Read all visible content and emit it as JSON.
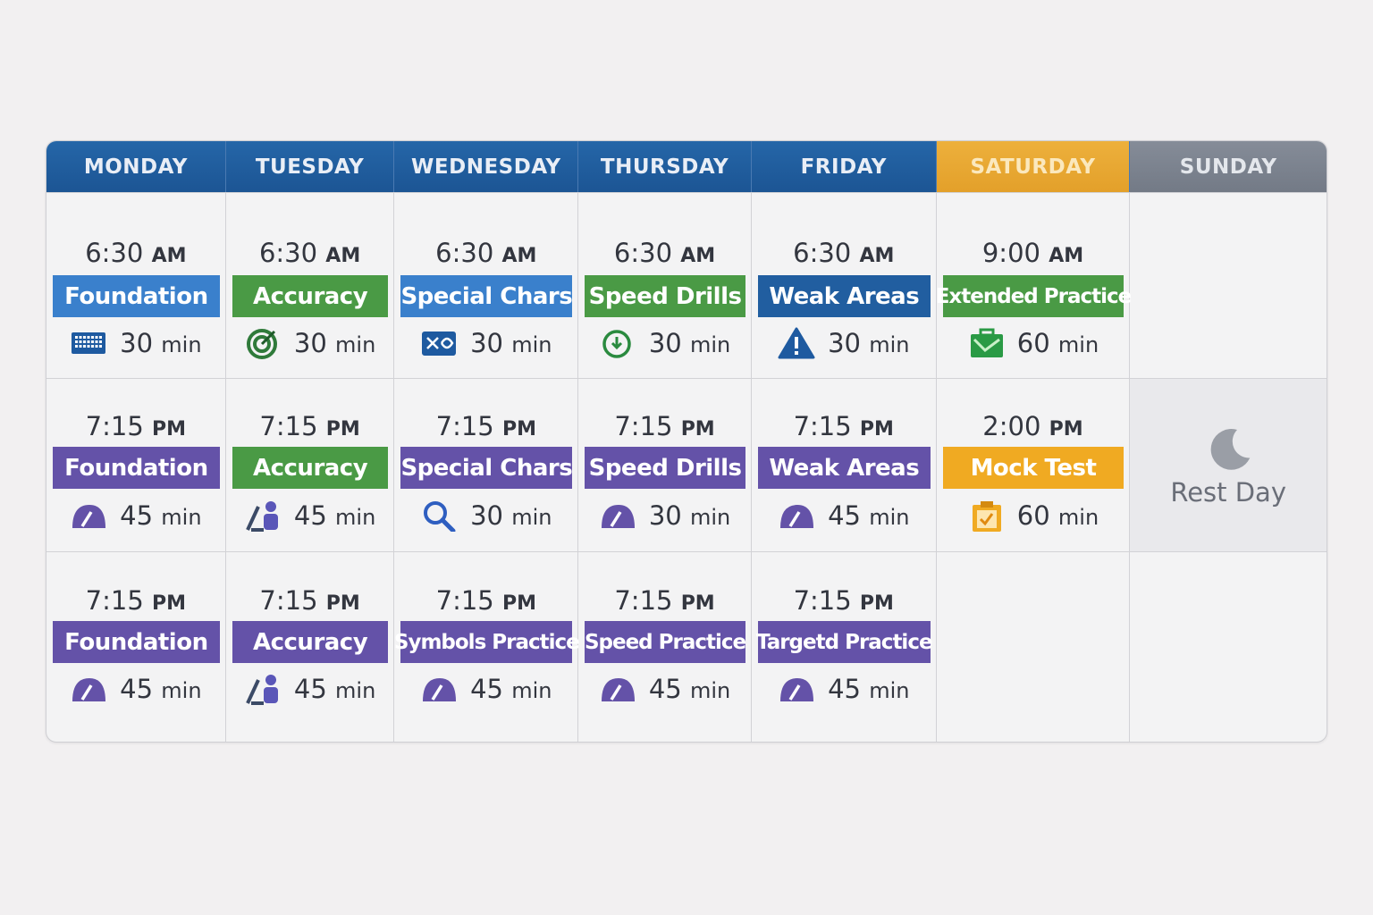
{
  "days": [
    {
      "name": "MONDAY"
    },
    {
      "name": "TUESDAY"
    },
    {
      "name": "WEDNESDAY"
    },
    {
      "name": "THURSDAY"
    },
    {
      "name": "FRIDAY"
    },
    {
      "name": "SATURDAY"
    },
    {
      "name": "SUNDAY"
    }
  ],
  "colors": {
    "header": "#1f5a9a",
    "saturday": "#e8a833",
    "sunday": "#7a8290",
    "blue": "#3a80cc",
    "green": "#4a9a45",
    "purple": "#6452a8",
    "darkblue": "#215ea0",
    "orange": "#f0aa22"
  },
  "rows": [
    [
      {
        "time": "6:30",
        "ampm": "AM",
        "label": "Foundation",
        "color": "blue",
        "mins": "30",
        "unit": "min",
        "icon": "keyboard-icon"
      },
      {
        "time": "6:30",
        "ampm": "AM",
        "label": "Accuracy",
        "color": "green",
        "mins": "30",
        "unit": "min",
        "icon": "target-icon"
      },
      {
        "time": "6:30",
        "ampm": "AM",
        "label": "Special Chars",
        "color": "blue",
        "mins": "30",
        "unit": "min",
        "icon": "symbols-icon"
      },
      {
        "time": "6:30",
        "ampm": "AM",
        "label": "Speed Drills",
        "color": "green",
        "mins": "30",
        "unit": "min",
        "icon": "clock-icon"
      },
      {
        "time": "6:30",
        "ampm": "AM",
        "label": "Weak Areas",
        "color": "darkblue",
        "mins": "30",
        "unit": "min",
        "icon": "warning-icon"
      },
      {
        "time": "9:00",
        "ampm": "AM",
        "label": "Extended Practice",
        "color": "green",
        "mins": "60",
        "unit": "min",
        "icon": "briefcase-icon"
      },
      null
    ],
    [
      {
        "time": "7:15",
        "ampm": "PM",
        "label": "Foundation",
        "color": "purple",
        "mins": "45",
        "unit": "min",
        "icon": "speedometer-icon"
      },
      {
        "time": "7:15",
        "ampm": "PM",
        "label": "Accuracy",
        "color": "green",
        "mins": "45",
        "unit": "min",
        "icon": "people-icon"
      },
      {
        "time": "7:15",
        "ampm": "PM",
        "label": "Special Chars",
        "color": "purple",
        "mins": "30",
        "unit": "min",
        "icon": "magnifier-icon"
      },
      {
        "time": "7:15",
        "ampm": "PM",
        "label": "Speed Drills",
        "color": "purple",
        "mins": "30",
        "unit": "min",
        "icon": "speedometer-icon"
      },
      {
        "time": "7:15",
        "ampm": "PM",
        "label": "Weak Areas",
        "color": "purple",
        "mins": "45",
        "unit": "min",
        "icon": "speedometer-icon"
      },
      {
        "time": "2:00",
        "ampm": "PM",
        "label": "Mock Test",
        "color": "orange",
        "mins": "60",
        "unit": "min",
        "icon": "clipboard-icon"
      },
      {
        "rest": "Rest Day",
        "icon": "moon-icon"
      }
    ],
    [
      {
        "time": "7:15",
        "ampm": "PM",
        "label": "Foundation",
        "color": "purple",
        "mins": "45",
        "unit": "min",
        "icon": "speedometer-icon"
      },
      {
        "time": "7:15",
        "ampm": "PM",
        "label": "Accuracy",
        "color": "purple",
        "mins": "45",
        "unit": "min",
        "icon": "people-icon"
      },
      {
        "time": "7:15",
        "ampm": "PM",
        "label": "Symbols Practice",
        "color": "purple",
        "mins": "45",
        "unit": "min",
        "icon": "speedometer-icon"
      },
      {
        "time": "7:15",
        "ampm": "PM",
        "label": "Speed Practice",
        "color": "purple",
        "mins": "45",
        "unit": "min",
        "icon": "speedometer-icon"
      },
      {
        "time": "7:15",
        "ampm": "PM",
        "label": "Targetd Practice",
        "color": "purple",
        "mins": "45",
        "unit": "min",
        "icon": "speedometer-icon"
      },
      null,
      null
    ]
  ]
}
